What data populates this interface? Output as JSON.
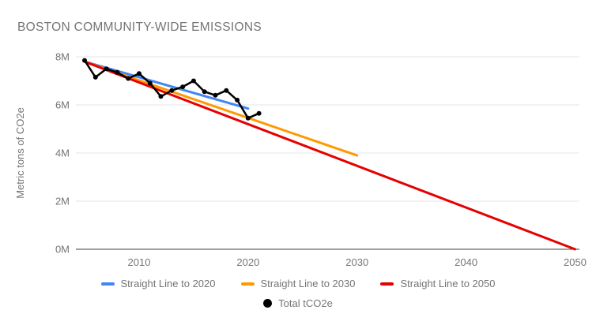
{
  "chart_data": {
    "type": "line",
    "title": "BOSTON COMMUNITY-WIDE EMISSIONS",
    "ylabel": "Metric tons of CO2e",
    "grid": true,
    "legend_position": "bottom",
    "x_axis": {
      "min": 2004.2,
      "max": 2050.4,
      "ticks": [
        2010,
        2020,
        2030,
        2040,
        2050
      ]
    },
    "y_axis": {
      "min": 0,
      "max": 8,
      "ticks": [
        8,
        6,
        4,
        2,
        0
      ],
      "tick_suffix": "M"
    },
    "axis_color": "#424242",
    "gridline_color": "#e6e6e6",
    "text_color": "#757575",
    "series": [
      {
        "name": "Straight Line to 2020",
        "color": "#4285f4",
        "line_width": 3,
        "legend_marker": "dash",
        "point_marker": "none",
        "x": [
          2005,
          2020
        ],
        "y": [
          7.8,
          5.85
        ]
      },
      {
        "name": "Straight Line to 2030",
        "color": "#ff9900",
        "line_width": 3,
        "legend_marker": "dash",
        "point_marker": "none",
        "x": [
          2005,
          2030
        ],
        "y": [
          7.8,
          3.9
        ]
      },
      {
        "name": "Straight Line to 2050",
        "color": "#e60000",
        "line_width": 3,
        "legend_marker": "dash",
        "point_marker": "none",
        "x": [
          2005,
          2050
        ],
        "y": [
          7.8,
          0
        ]
      },
      {
        "name": "Total tCO2e",
        "color": "#000000",
        "line_width": 2.5,
        "legend_marker": "circle",
        "point_marker": "circle",
        "x": [
          2005,
          2006,
          2007,
          2008,
          2009,
          2010,
          2011,
          2012,
          2013,
          2014,
          2015,
          2016,
          2017,
          2018,
          2019,
          2020,
          2021
        ],
        "y": [
          7.85,
          7.15,
          7.5,
          7.35,
          7.1,
          7.3,
          6.9,
          6.35,
          6.6,
          6.75,
          7.0,
          6.55,
          6.4,
          6.6,
          6.2,
          5.45,
          5.65
        ]
      }
    ],
    "legend_rows": [
      [
        0,
        1,
        2
      ],
      [
        3
      ]
    ]
  }
}
